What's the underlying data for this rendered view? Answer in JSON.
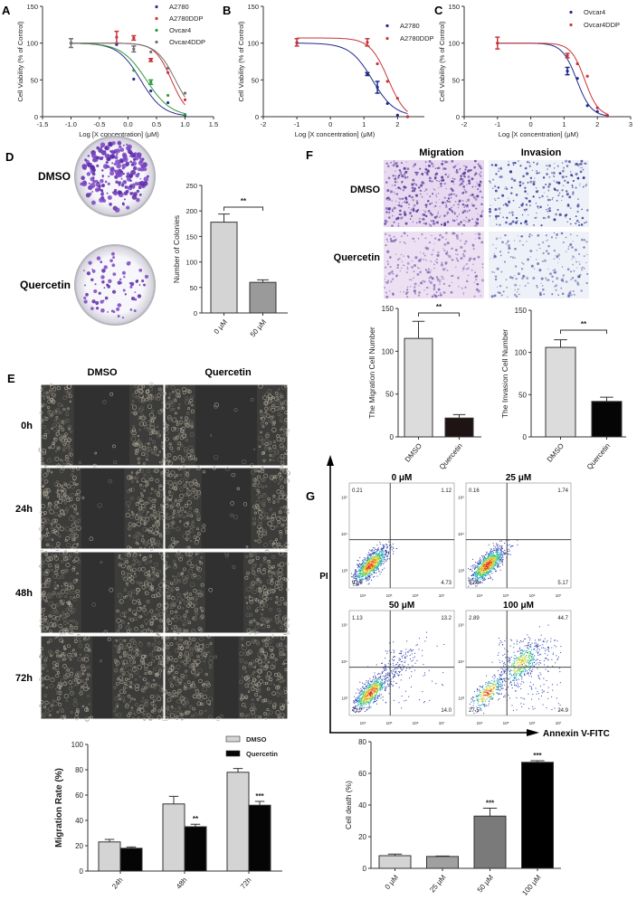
{
  "panel_labels": {
    "A": "A",
    "B": "B",
    "C": "C",
    "D": "D",
    "E": "E",
    "F": "F",
    "G": "G"
  },
  "chart_data": [
    {
      "panel": "A",
      "type": "scatter",
      "xlabel": "Log [X concentration] (μM)",
      "ylabel": "Cell Viability (% of Control)",
      "xlim": [
        -1.5,
        1.5
      ],
      "ylim": [
        0,
        150
      ],
      "xticks": [
        "-1.5",
        "-1.0",
        "-0.5",
        "0.0",
        "0.5",
        "1.0",
        "1.5"
      ],
      "yticks": [
        "0",
        "50",
        "100",
        "150"
      ],
      "legend": "top-right",
      "series": [
        {
          "name": "A2780",
          "color": "#2b2f8f",
          "fit": {
            "top": 100,
            "bottom": 0,
            "logIC50": 0.22,
            "hill": 2.2
          },
          "points": [
            {
              "x": -1,
              "y": 100,
              "err": 0
            },
            {
              "x": -0.2,
              "y": 98,
              "err": 0
            },
            {
              "x": 0.1,
              "y": 51,
              "err": 0
            },
            {
              "x": 0.4,
              "y": 35,
              "err": 0
            },
            {
              "x": 0.7,
              "y": 19,
              "err": 0
            },
            {
              "x": 1.0,
              "y": 2,
              "err": 0
            }
          ]
        },
        {
          "name": "A2780DDP",
          "color": "#c8343a",
          "fit": {
            "top": 100,
            "bottom": 0,
            "logIC50": 0.76,
            "hill": 3.0
          },
          "points": [
            {
              "x": -1,
              "y": 100,
              "err": 0
            },
            {
              "x": -0.2,
              "y": 108,
              "err": 8
            },
            {
              "x": 0.1,
              "y": 107,
              "err": 3
            },
            {
              "x": 0.4,
              "y": 77,
              "err": 2
            },
            {
              "x": 0.7,
              "y": 60,
              "err": 0
            },
            {
              "x": 1.0,
              "y": 23,
              "err": 0
            }
          ]
        },
        {
          "name": "Ovcar4",
          "color": "#2e9a3e",
          "fit": {
            "top": 100,
            "bottom": 0,
            "logIC50": 0.32,
            "hill": 2.0
          },
          "points": [
            {
              "x": -1,
              "y": 100,
              "err": 0
            },
            {
              "x": 0.1,
              "y": 63,
              "err": 0
            },
            {
              "x": 0.4,
              "y": 47,
              "err": 3
            },
            {
              "x": 0.7,
              "y": 29,
              "err": 0
            },
            {
              "x": 1.0,
              "y": 3,
              "err": 0
            }
          ]
        },
        {
          "name": "Ovcar4DDP",
          "color": "#707070",
          "fit": {
            "top": 100,
            "bottom": 0,
            "logIC50": 0.83,
            "hill": 2.6
          },
          "points": [
            {
              "x": -1,
              "y": 100,
              "err": 6
            },
            {
              "x": 0.1,
              "y": 92,
              "err": 4
            },
            {
              "x": 0.4,
              "y": 88,
              "err": 0
            },
            {
              "x": 0.7,
              "y": 66,
              "err": 0
            },
            {
              "x": 1.0,
              "y": 32,
              "err": 0
            }
          ]
        }
      ]
    },
    {
      "panel": "B",
      "type": "scatter",
      "xlabel": "Log [X concentration] (μM)",
      "ylabel": "Cell Viability (% of Control)",
      "xlim": [
        -2,
        2.8
      ],
      "ylim": [
        0,
        150
      ],
      "xticks": [
        "-2",
        "-1",
        "0",
        "1",
        "2"
      ],
      "yticks": [
        "0",
        "50",
        "100",
        "150"
      ],
      "legend": "top-right",
      "series": [
        {
          "name": "A2780",
          "color": "#1f2a8a",
          "fit": {
            "top": 100,
            "bottom": 0,
            "logIC50": 1.25,
            "hill": 1.3
          },
          "points": [
            {
              "x": -1,
              "y": 100,
              "err": 0
            },
            {
              "x": 1.1,
              "y": 58,
              "err": 2
            },
            {
              "x": 1.4,
              "y": 40,
              "err": 8
            },
            {
              "x": 1.7,
              "y": 18,
              "err": 0
            },
            {
              "x": 2.0,
              "y": 2,
              "err": 0
            },
            {
              "x": 2.3,
              "y": 0,
              "err": 0
            }
          ]
        },
        {
          "name": "A2780DDP",
          "color": "#c8343a",
          "fit": {
            "top": 107,
            "bottom": -5,
            "logIC50": 1.72,
            "hill": 1.6
          },
          "points": [
            {
              "x": -1,
              "y": 101,
              "err": 5
            },
            {
              "x": 1.1,
              "y": 101,
              "err": 5
            },
            {
              "x": 1.4,
              "y": 72,
              "err": 0
            },
            {
              "x": 1.7,
              "y": 48,
              "err": 0
            },
            {
              "x": 2.0,
              "y": 25,
              "err": 0
            },
            {
              "x": 2.3,
              "y": 0,
              "err": 0
            }
          ]
        }
      ]
    },
    {
      "panel": "C",
      "type": "scatter",
      "xlabel": "Log [X concentration] (μM)",
      "ylabel": "Cell Viability (% of Control)",
      "xlim": [
        -2,
        3
      ],
      "ylim": [
        0,
        150
      ],
      "xticks": [
        "-2",
        "-1",
        "0",
        "1",
        "2",
        "3"
      ],
      "yticks": [
        "0",
        "50",
        "100",
        "150"
      ],
      "legend": "top-right",
      "series": [
        {
          "name": "Ovcar4",
          "color": "#1f2a8a",
          "fit": {
            "top": 100,
            "bottom": 0,
            "logIC50": 1.38,
            "hill": 2.0
          },
          "points": [
            {
              "x": -1,
              "y": 100,
              "err": 0
            },
            {
              "x": 1.1,
              "y": 62,
              "err": 5
            },
            {
              "x": 1.4,
              "y": 52,
              "err": 0
            },
            {
              "x": 1.7,
              "y": 15,
              "err": 0
            },
            {
              "x": 2.0,
              "y": 7,
              "err": 0
            },
            {
              "x": 2.3,
              "y": 1,
              "err": 0
            }
          ]
        },
        {
          "name": "Ovcar4DDP",
          "color": "#c8343a",
          "fit": {
            "top": 100,
            "bottom": 0,
            "logIC50": 1.62,
            "hill": 2.1
          },
          "points": [
            {
              "x": -1,
              "y": 100,
              "err": 8
            },
            {
              "x": 1.1,
              "y": 83,
              "err": 3
            },
            {
              "x": 1.4,
              "y": 72,
              "err": 0
            },
            {
              "x": 1.7,
              "y": 55,
              "err": 0
            },
            {
              "x": 2.0,
              "y": 12,
              "err": 0
            },
            {
              "x": 2.3,
              "y": 2,
              "err": 0
            }
          ]
        }
      ]
    },
    {
      "panel": "D",
      "type": "bar",
      "ylabel": "Number of Colonies",
      "ylim": [
        0,
        250
      ],
      "yticks": [
        "0",
        "50",
        "100",
        "150",
        "200",
        "250"
      ],
      "categories": [
        "0 μM",
        "50 μM"
      ],
      "values": [
        178,
        60
      ],
      "errors": [
        16,
        5
      ],
      "colors": [
        "#d4d4d4",
        "#9a9a9a"
      ],
      "significance": {
        "from": 0,
        "to": 1,
        "label": "**"
      }
    },
    {
      "panel": "F",
      "type": "bar",
      "ylabel": "The Migration Cell Number",
      "ylim": [
        0,
        150
      ],
      "yticks": [
        "0",
        "50",
        "100",
        "150"
      ],
      "categories": [
        "DMSO",
        "Quercetin"
      ],
      "values": [
        115,
        22
      ],
      "errors": [
        20,
        4
      ],
      "colors": [
        "#dcdcdc",
        "#1e1414"
      ],
      "significance": {
        "from": 0,
        "to": 1,
        "label": "**"
      }
    },
    {
      "panel": "F",
      "type": "bar",
      "ylabel": "The Invasion Cell Number",
      "ylim": [
        0,
        150
      ],
      "yticks": [
        "0",
        "50",
        "100",
        "150"
      ],
      "categories": [
        "DMSO",
        "Quercetin"
      ],
      "values": [
        106,
        42
      ],
      "errors": [
        9,
        5
      ],
      "colors": [
        "#dcdcdc",
        "#050505"
      ],
      "significance": {
        "from": 0,
        "to": 1,
        "label": "**"
      }
    },
    {
      "panel": "E",
      "type": "bar",
      "ylabel": "Migration Rate (%)",
      "ylim": [
        0,
        100
      ],
      "yticks": [
        "0",
        "20",
        "40",
        "60",
        "80",
        "100"
      ],
      "categories": [
        "24h",
        "48h",
        "72h"
      ],
      "legend": "top-right",
      "series": [
        {
          "name": "DMSO",
          "color": "#d4d4d4",
          "values": [
            23,
            53,
            78
          ],
          "errors": [
            2,
            6,
            3
          ],
          "significance": [
            "",
            "",
            ""
          ]
        },
        {
          "name": "Quercetin",
          "color": "#050505",
          "values": [
            18,
            35,
            52
          ],
          "errors": [
            1,
            2,
            3
          ],
          "significance": [
            "",
            "**",
            "***"
          ]
        }
      ]
    },
    {
      "panel": "G",
      "type": "bar",
      "ylabel": "Cell death (%)",
      "ylim": [
        0,
        80
      ],
      "yticks": [
        "0",
        "20",
        "40",
        "60",
        "80"
      ],
      "categories": [
        "0 μM",
        "25 μM",
        "50 μM",
        "100 μM"
      ],
      "values": [
        8,
        7.5,
        33,
        67
      ],
      "errors": [
        1,
        0.3,
        5,
        1
      ],
      "colors": [
        "#d4d4d4",
        "#a0a0a0",
        "#7a7a7a",
        "#000000"
      ],
      "significance_labels": [
        "",
        "",
        "***",
        "***"
      ]
    }
  ],
  "colony_assay": {
    "rows": [
      "DMSO",
      "Quercetin"
    ]
  },
  "transwell": {
    "columns": [
      "Migration",
      "Invasion"
    ],
    "rows": [
      "DMSO",
      "Quercetin"
    ]
  },
  "wound_healing": {
    "columns": [
      "DMSO",
      "Quercetin"
    ],
    "rows": [
      "0h",
      "24h",
      "48h",
      "72h"
    ]
  },
  "flow_cytometry": {
    "y_axis": "PI",
    "x_axis": "Annexin V-FITC",
    "tick_labels": [
      "10⁴",
      "10⁵",
      "10⁶",
      "10⁷"
    ],
    "y_tick_labels": [
      "10³",
      "10⁴",
      "10⁵"
    ],
    "plots": [
      {
        "title": "0 μM",
        "UL": "0.21",
        "UR": "1.12",
        "LL": "93.9",
        "LR": "4.73"
      },
      {
        "title": "25 μM",
        "UL": "0.16",
        "UR": "1.74",
        "LL": "92.9",
        "LR": "5.17"
      },
      {
        "title": "50 μM",
        "UL": "1.13",
        "UR": "13.2",
        "LL": "71.7",
        "LR": "14.0"
      },
      {
        "title": "100 μM",
        "UL": "2.89",
        "UR": "44.7",
        "LL": "27.5",
        "LR": "24.9"
      }
    ]
  }
}
